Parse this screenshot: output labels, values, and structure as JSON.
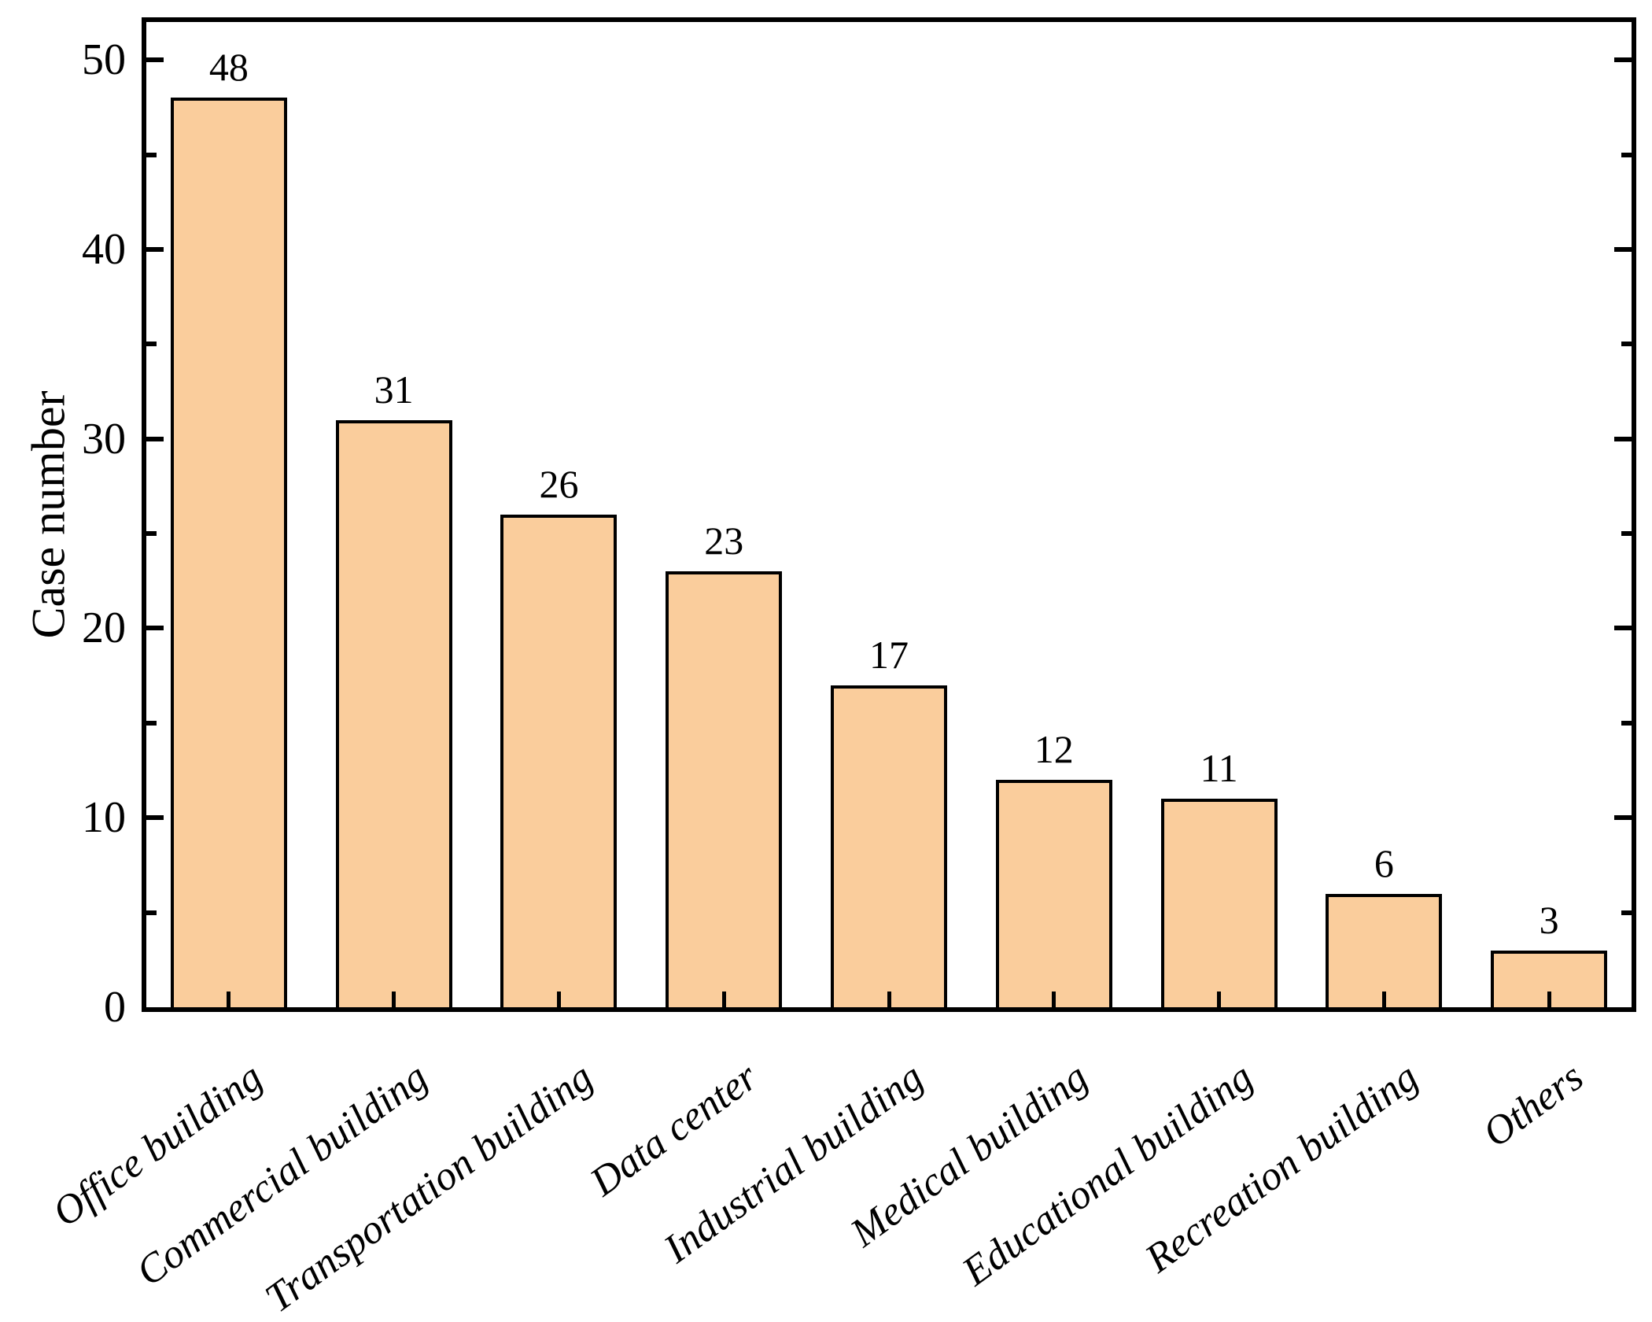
{
  "chart_data": {
    "type": "bar",
    "title": "",
    "xlabel": "",
    "ylabel": "Case number",
    "categories": [
      "Office building",
      "Commercial building",
      "Transportation building",
      "Data center",
      "Industrial building",
      "Medical building",
      "Educational building",
      "Recreation building",
      "Others"
    ],
    "values": [
      48,
      31,
      26,
      23,
      17,
      12,
      11,
      6,
      3
    ],
    "value_labels": [
      "48",
      "31",
      "26",
      "23",
      "17",
      "12",
      "11",
      "6",
      "3"
    ],
    "ylim": [
      0,
      52
    ],
    "yticks_major": [
      0,
      10,
      20,
      30,
      40,
      50
    ],
    "ytick_labels": [
      "0",
      "10",
      "20",
      "30",
      "40",
      "50"
    ],
    "yticks_minor": [
      5,
      15,
      25,
      35,
      45
    ],
    "grid": false,
    "legend": null,
    "colors": {
      "bar_fill": "#facd9c",
      "bar_edge": "#000000",
      "axis": "#000000",
      "text": "#000000",
      "background": "#ffffff"
    }
  }
}
